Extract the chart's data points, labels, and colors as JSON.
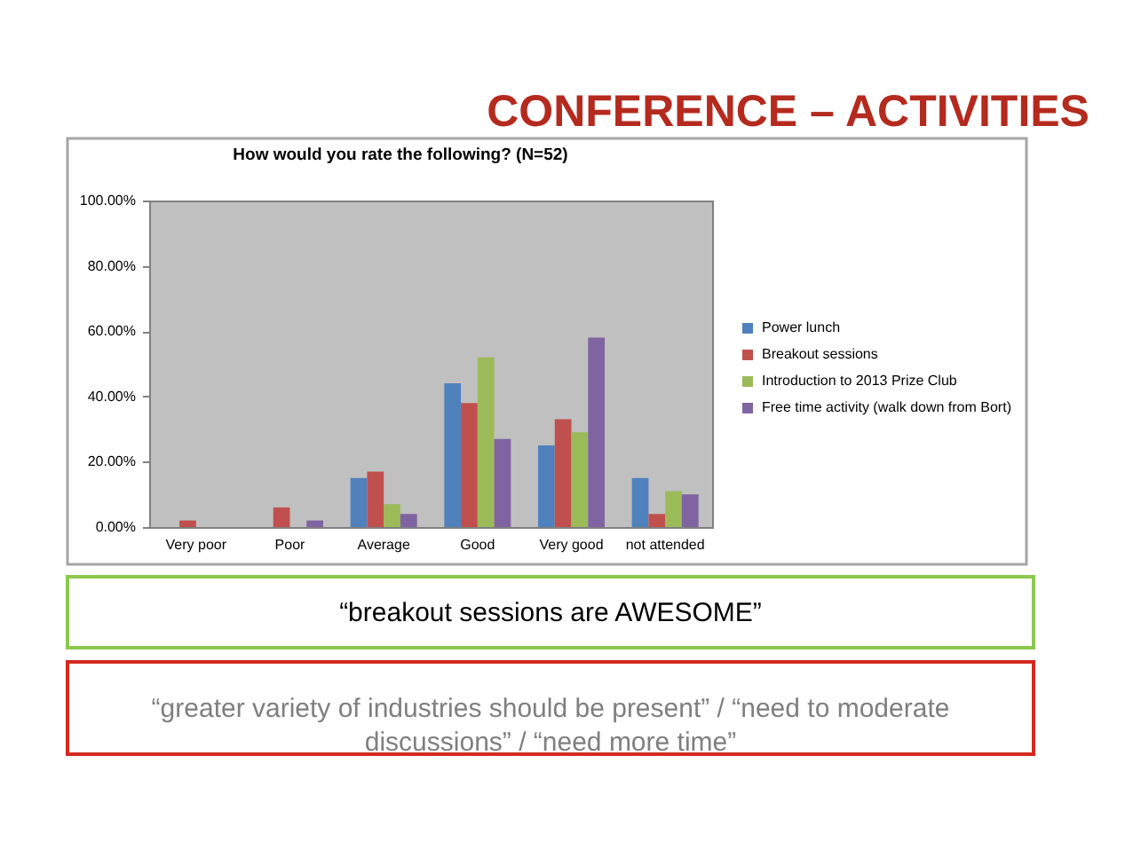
{
  "chart_data": {
    "type": "bar",
    "title": "CONFERENCE – ACTIVITIES",
    "subtitle": "How would you rate the following? (N=52)",
    "categories": [
      "Very poor",
      "Poor",
      "Average",
      "Good",
      "Very good",
      "not attended"
    ],
    "series": [
      {
        "name": "Power lunch",
        "color": "#4f81bd",
        "values": [
          0,
          0,
          15,
          44,
          25,
          15
        ]
      },
      {
        "name": "Breakout sessions",
        "color": "#c0504d",
        "values": [
          2,
          6,
          17,
          38,
          33,
          4
        ]
      },
      {
        "name": "Introduction to 2013 Prize Club",
        "color": "#9bbb59",
        "values": [
          0,
          0,
          7,
          52,
          29,
          11
        ]
      },
      {
        "name": "Free time activity (walk down from Bort)",
        "color": "#8064a2",
        "values": [
          0,
          2,
          4,
          27,
          58,
          10
        ]
      }
    ],
    "ylim": [
      0,
      100
    ],
    "yticks": [
      {
        "value": 0,
        "label": "0.00%"
      },
      {
        "value": 20,
        "label": "20.00%"
      },
      {
        "value": 40,
        "label": "40.00%"
      },
      {
        "value": 60,
        "label": "60.00%"
      },
      {
        "value": 80,
        "label": "80.00%"
      },
      {
        "value": 100,
        "label": "100.00%"
      }
    ],
    "legend": "right",
    "annotations": [
      "“breakout sessions are AWESOME”",
      "“greater variety of industries should be present” / “need to moderate discussions” / “need more time”"
    ]
  }
}
